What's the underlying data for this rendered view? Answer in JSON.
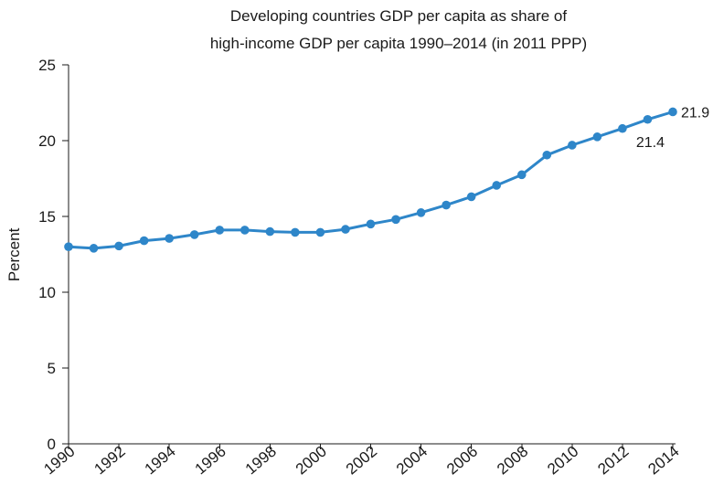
{
  "chart_data": {
    "type": "line",
    "title": "Developing countries GDP per capita as share of high-income GDP per capita 1990–2014 (in 2011 PPP)",
    "title_lines": [
      "Developing countries GDP per capita as share of",
      "high-income GDP per capita 1990–2014 (in 2011 PPP)"
    ],
    "xlabel": "",
    "ylabel": "Percent",
    "x": [
      1990,
      1991,
      1992,
      1993,
      1994,
      1995,
      1996,
      1997,
      1998,
      1999,
      2000,
      2001,
      2002,
      2003,
      2004,
      2005,
      2006,
      2007,
      2008,
      2009,
      2010,
      2011,
      2012,
      2013,
      2014
    ],
    "series": [
      {
        "values": [
          13.0,
          12.9,
          13.05,
          13.4,
          13.55,
          13.8,
          14.1,
          14.1,
          14.0,
          13.95,
          13.95,
          14.15,
          14.5,
          14.8,
          15.25,
          15.75,
          16.3,
          17.05,
          17.75,
          19.05,
          19.7,
          20.25,
          20.8,
          21.4,
          21.9
        ]
      }
    ],
    "x_ticks": [
      "1990",
      "1992",
      "1994",
      "1996",
      "1998",
      "2000",
      "2002",
      "2004",
      "2006",
      "2008",
      "2010",
      "2012",
      "2014"
    ],
    "y_ticks": [
      0,
      5,
      10,
      15,
      20,
      25
    ],
    "xlim": [
      1990,
      2014
    ],
    "ylim": [
      0,
      25
    ],
    "grid": false,
    "legend": "none",
    "annotations": [
      {
        "x": 2014,
        "y": 21.9,
        "text": "21.9",
        "placement": "right"
      },
      {
        "x": 2013,
        "y": 21.4,
        "text": "21.4",
        "placement": "below"
      }
    ],
    "colors": {
      "series": "#2e86c9",
      "axis": "#1a1a1a",
      "text": "#1a1a1a"
    }
  }
}
